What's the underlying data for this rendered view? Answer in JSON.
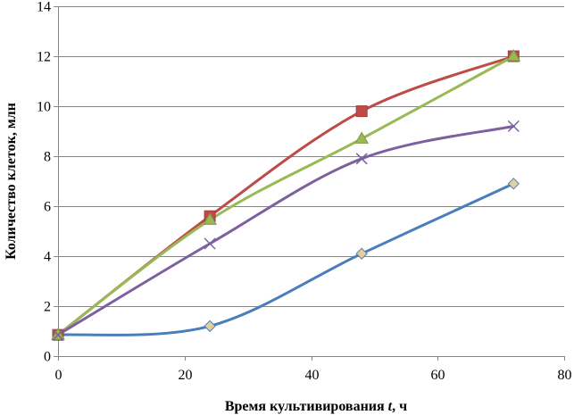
{
  "chart_data": {
    "type": "line",
    "xlabel_main": "Время культивирования ",
    "xlabel_var": "t",
    "xlabel_unit": ", ч",
    "ylabel": "Количество клеток, млн",
    "xlim": [
      0,
      80
    ],
    "ylim": [
      0,
      14
    ],
    "x_ticks": [
      "0",
      "20",
      "40",
      "60",
      "80"
    ],
    "y_ticks": [
      "0",
      "2",
      "4",
      "6",
      "8",
      "10",
      "12",
      "14"
    ],
    "grid": "horizontal",
    "legend": "none",
    "series": [
      {
        "x": [
          0,
          24,
          48,
          72
        ],
        "values": [
          0.85,
          1.2,
          4.1,
          6.9
        ],
        "line_color": "#4a7ebb",
        "marker": "diamond",
        "marker_color": "#e3cf9c"
      },
      {
        "x": [
          0,
          24,
          48,
          72
        ],
        "values": [
          0.85,
          5.6,
          9.8,
          12.0
        ],
        "line_color": "#be4b48",
        "marker": "square",
        "marker_color": "#be4b48"
      },
      {
        "x": [
          0,
          24,
          48,
          72
        ],
        "values": [
          0.85,
          5.45,
          8.7,
          12.0
        ],
        "line_color": "#98b954",
        "marker": "triangle",
        "marker_color": "#98b954"
      },
      {
        "x": [
          0,
          24,
          48,
          72
        ],
        "values": [
          0.85,
          4.5,
          7.9,
          9.2
        ],
        "line_color": "#7d60a0",
        "marker": "x",
        "marker_color": "#7d60a0"
      }
    ]
  }
}
